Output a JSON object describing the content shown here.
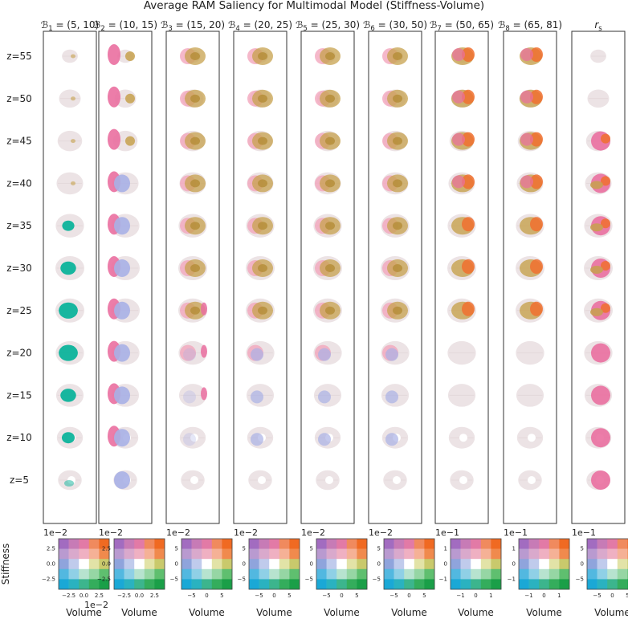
{
  "chart_data": {
    "type": "heatmap",
    "title": "Average RAM Saliency for Multimodal Model (Stiffness-Volume)",
    "columns": [
      {
        "label": "B_1 = (5, 10)",
        "math": "ℬ",
        "sub": "1",
        "range": "(5, 10)"
      },
      {
        "label": "B_2 = (10, 15)",
        "math": "ℬ",
        "sub": "2",
        "range": "(10, 15)"
      },
      {
        "label": "B_3 = (15, 20)",
        "math": "ℬ",
        "sub": "3",
        "range": "(15, 20)"
      },
      {
        "label": "B_4 = (20, 25)",
        "math": "ℬ",
        "sub": "4",
        "range": "(20, 25)"
      },
      {
        "label": "B_5 = (25, 30)",
        "math": "ℬ",
        "sub": "5",
        "range": "(25, 30)"
      },
      {
        "label": "B_6 = (30, 50)",
        "math": "ℬ",
        "sub": "6",
        "range": "(30, 50)"
      },
      {
        "label": "B_7 = (50, 65)",
        "math": "ℬ",
        "sub": "7",
        "range": "(50, 65)"
      },
      {
        "label": "B_8 = (65, 81)",
        "math": "ℬ",
        "sub": "8",
        "range": "(65, 81)"
      },
      {
        "label": "r_s",
        "math": "r",
        "sub": "s",
        "range": ""
      }
    ],
    "slices": [
      "z=55",
      "z=50",
      "z=45",
      "z=40",
      "z=35",
      "z=30",
      "z=25",
      "z=20",
      "z=15",
      "z=10",
      "z=5"
    ],
    "legend_axes": {
      "ylabel": "Stiffness",
      "xlabel": "Volume",
      "panels": [
        {
          "y_scale": "1e−2",
          "x_scale": "1e−2",
          "yticks": [
            "2.5",
            "0.0",
            "−2.5"
          ],
          "xticks": [
            "−2.5",
            "0.0",
            "2.5"
          ],
          "show_ylabel": true
        },
        {
          "y_scale": "1e−2",
          "x_scale": "",
          "yticks": [
            "2.5",
            "0.0",
            "−2.5"
          ],
          "xticks": [
            "−2.5",
            "0.0",
            "2.5"
          ]
        },
        {
          "y_scale": "1e−2",
          "x_scale": "",
          "yticks": [
            "5",
            "0",
            "−5"
          ],
          "xticks": [
            "−5",
            "0",
            "5"
          ]
        },
        {
          "y_scale": "1e−2",
          "x_scale": "",
          "yticks": [
            "5",
            "0",
            "−5"
          ],
          "xticks": [
            "−5",
            "0",
            "5"
          ]
        },
        {
          "y_scale": "1e−2",
          "x_scale": "",
          "yticks": [
            "5",
            "0",
            "−5"
          ],
          "xticks": [
            "−5",
            "0",
            "5"
          ]
        },
        {
          "y_scale": "1e−2",
          "x_scale": "",
          "yticks": [
            "5",
            "0",
            "−5"
          ],
          "xticks": [
            "−5",
            "0",
            "5"
          ]
        },
        {
          "y_scale": "1e−1",
          "x_scale": "",
          "yticks": [
            "1",
            "0",
            "−1"
          ],
          "xticks": [
            "−1",
            "0",
            "1"
          ]
        },
        {
          "y_scale": "1e−1",
          "x_scale": "",
          "yticks": [
            "1",
            "0",
            "−1"
          ],
          "xticks": [
            "−1",
            "0",
            "1"
          ]
        },
        {
          "y_scale": "1e−1",
          "x_scale": "",
          "yticks": [
            "5",
            "0",
            "−5"
          ],
          "xticks": [
            "−5",
            "0",
            "5"
          ]
        }
      ]
    },
    "colors": {
      "brain": "#ece3e5",
      "pink": "#ea6fa0",
      "light_pink": "#f3a6bd",
      "olive": "#c7a14e",
      "dark_olive": "#b7903e",
      "orange": "#f0702f",
      "teal": "#0db39b",
      "lavender": "#a9b0e6",
      "cmap_top_left": "#9b59b6",
      "cmap_top_right": "#f26a1b",
      "cmap_bottom_left": "#19a8d6",
      "cmap_bottom_right": "#1aa04a"
    },
    "cmap_grid": [
      [
        "#a26cc0",
        "#c77bb6",
        "#e27aa6",
        "#f08a5e",
        "#f06a22"
      ],
      [
        "#b99ad0",
        "#d9a9cc",
        "#efb0c2",
        "#f5b196",
        "#f08a4d"
      ],
      [
        "#8fa4dc",
        "#c0cbec",
        "#ffffff",
        "#e2e3a7",
        "#c9c96c"
      ],
      [
        "#52b8e0",
        "#8fd0e6",
        "#b7e3cf",
        "#96d6a4",
        "#5fbf6f"
      ],
      [
        "#1aa8d6",
        "#2ab2c0",
        "#3cb58d",
        "#34ad5c",
        "#1a9f48"
      ]
    ]
  }
}
